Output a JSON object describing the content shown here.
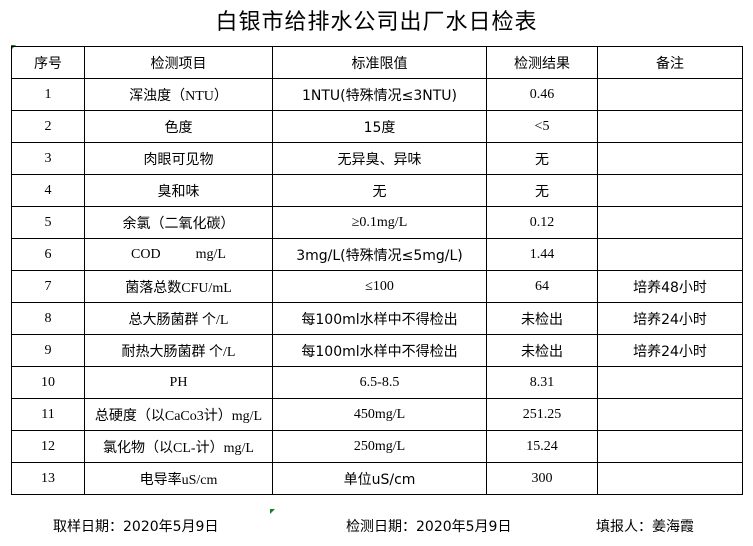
{
  "title": "白银市给排水公司出厂水日检表",
  "headers": [
    "序号",
    "检测项目",
    "标准限值",
    "检测结果",
    "备注"
  ],
  "rows": [
    [
      "1",
      "浑浊度（NTU）",
      "1NTU(特殊情况≤3NTU)",
      "0.46",
      ""
    ],
    [
      "2",
      "色度",
      "15度",
      "<5",
      ""
    ],
    [
      "3",
      "肉眼可见物",
      "无异臭、异味",
      "无",
      ""
    ],
    [
      "4",
      "臭和味",
      "无",
      "无",
      ""
    ],
    [
      "5",
      "余氯（二氧化碳）",
      "≥0.1mg/L",
      "0.12",
      ""
    ],
    [
      "6",
      "COD          mg/L",
      "3mg/L(特殊情况≤5mg/L)",
      "1.44",
      ""
    ],
    [
      "7",
      "菌落总数CFU/mL",
      "≤100",
      "64",
      "培养48小时"
    ],
    [
      "8",
      "总大肠菌群 个/L",
      "每100ml水样中不得检出",
      "未检出",
      "培养24小时"
    ],
    [
      "9",
      "耐热大肠菌群 个/L",
      "每100ml水样中不得检出",
      "未检出",
      "培养24小时"
    ],
    [
      "10",
      "PH",
      "6.5-8.5",
      "8.31",
      ""
    ],
    [
      "11",
      "总硬度（以CaCo3计）mg/L",
      "450mg/L",
      "251.25",
      ""
    ],
    [
      "12",
      "氯化物（以CL-计）mg/L",
      "250mg/L",
      "15.24",
      ""
    ],
    [
      "13",
      "电导率uS/cm",
      "单位uS/cm",
      "300",
      ""
    ]
  ],
  "footer": {
    "sample_date": "取样日期：2020年5月9日",
    "test_date": "检测日期：2020年5月9日",
    "reporter": "填报人：姜海霞"
  }
}
